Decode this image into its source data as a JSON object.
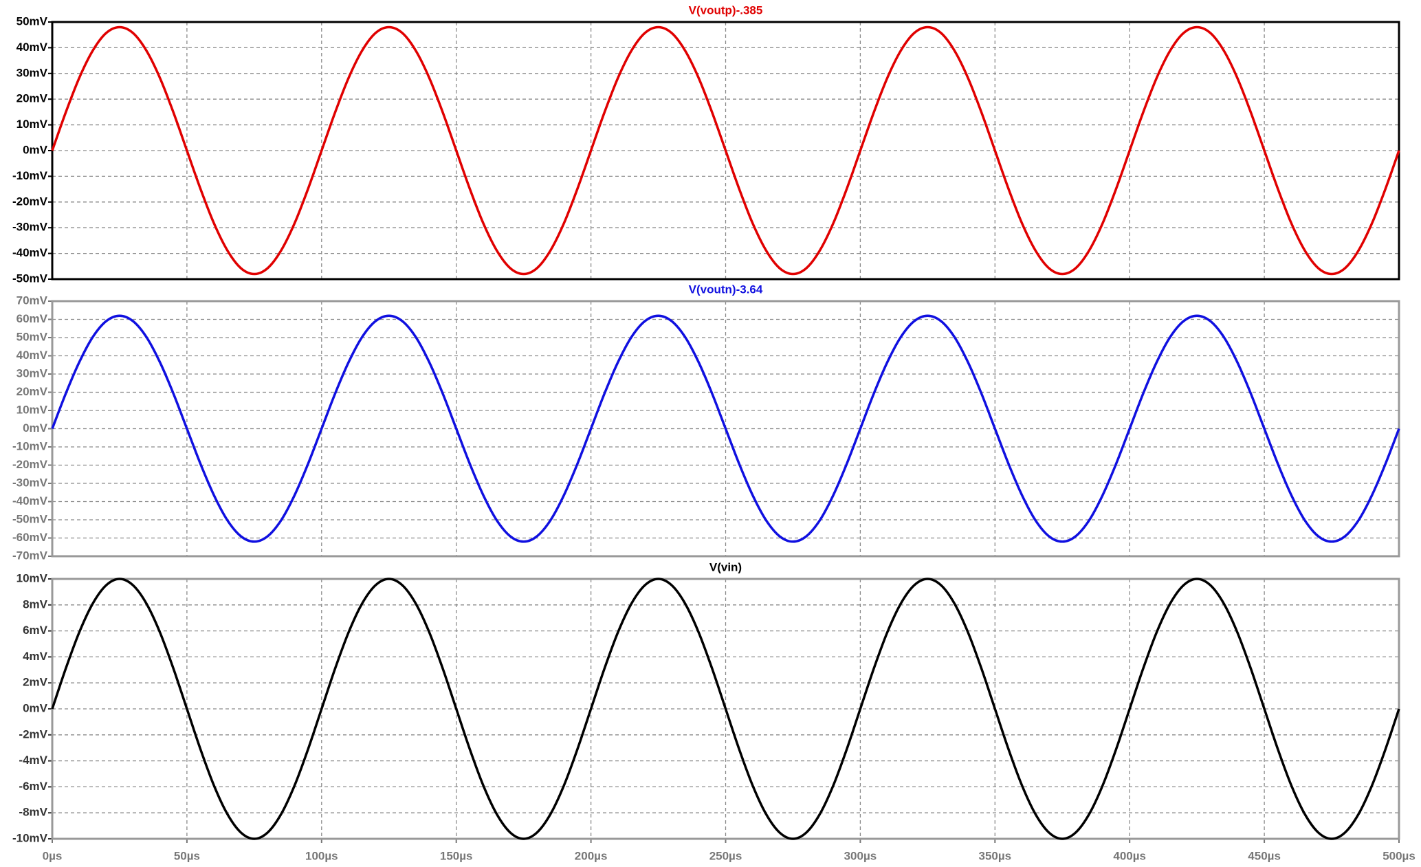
{
  "chart_data": [
    {
      "type": "line",
      "xlim": [
        0,
        500
      ],
      "ylim": [
        -50,
        50
      ],
      "yticks": [
        {
          "value": 50,
          "label": "50mV"
        },
        {
          "value": 40,
          "label": "40mV"
        },
        {
          "value": 30,
          "label": "30mV"
        },
        {
          "value": 20,
          "label": "20mV"
        },
        {
          "value": 10,
          "label": "10mV"
        },
        {
          "value": 0,
          "label": "0mV"
        },
        {
          "value": -10,
          "label": "-10mV"
        },
        {
          "value": -20,
          "label": "-20mV"
        },
        {
          "value": -30,
          "label": "-30mV"
        },
        {
          "value": -40,
          "label": "-40mV"
        },
        {
          "value": -50,
          "label": "-50mV"
        }
      ],
      "grid": true,
      "x": [
        0,
        5,
        10,
        15,
        20,
        25,
        30,
        35,
        40,
        45,
        50,
        55,
        60,
        65,
        70,
        75,
        80,
        85,
        90,
        95,
        100,
        105,
        110,
        115,
        120,
        125,
        130,
        135,
        140,
        145,
        150,
        155,
        160,
        165,
        170,
        175,
        180,
        185,
        190,
        195,
        200,
        205,
        210,
        215,
        220,
        225,
        230,
        235,
        240,
        245,
        250,
        255,
        260,
        265,
        270,
        275,
        280,
        285,
        290,
        295,
        300,
        305,
        310,
        315,
        320,
        325,
        330,
        335,
        340,
        345,
        350,
        355,
        360,
        365,
        370,
        375,
        380,
        385,
        390,
        395,
        400,
        405,
        410,
        415,
        420,
        425,
        430,
        435,
        440,
        445,
        450,
        455,
        460,
        465,
        470,
        475,
        480,
        485,
        490,
        495,
        500
      ],
      "series": [
        {
          "name": "V(voutp)-.385",
          "color": "#e00000",
          "values": [
            0,
            14.8,
            28.2,
            38.8,
            45.7,
            48,
            45.7,
            38.8,
            28.2,
            14.8,
            0,
            -14.8,
            -28.2,
            -38.8,
            -45.7,
            -48,
            -45.7,
            -38.8,
            -28.2,
            -14.8,
            0,
            14.8,
            28.2,
            38.8,
            45.7,
            48,
            45.7,
            38.8,
            28.2,
            14.8,
            0,
            -14.8,
            -28.2,
            -38.8,
            -45.7,
            -48,
            -45.7,
            -38.8,
            -28.2,
            -14.8,
            0,
            14.8,
            28.2,
            38.8,
            45.7,
            48,
            45.7,
            38.8,
            28.2,
            14.8,
            0,
            -14.8,
            -28.2,
            -38.8,
            -45.7,
            -48,
            -45.7,
            -38.8,
            -28.2,
            -14.8,
            0,
            14.8,
            28.2,
            38.8,
            45.7,
            48,
            45.7,
            38.8,
            28.2,
            14.8,
            0,
            -14.8,
            -28.2,
            -38.8,
            -45.7,
            -48,
            -45.7,
            -38.8,
            -28.2,
            -14.8,
            0,
            14.8,
            28.2,
            38.8,
            45.7,
            48,
            45.7,
            38.8,
            28.2,
            14.8,
            0,
            -14.8,
            -28.2,
            -38.8,
            -45.7,
            -48,
            -45.7,
            -38.8,
            -28.2,
            -14.8,
            0
          ]
        }
      ]
    },
    {
      "type": "line",
      "xlim": [
        0,
        500
      ],
      "ylim": [
        -70,
        70
      ],
      "yticks": [
        {
          "value": 70,
          "label": "70mV"
        },
        {
          "value": 60,
          "label": "60mV"
        },
        {
          "value": 50,
          "label": "50mV"
        },
        {
          "value": 40,
          "label": "40mV"
        },
        {
          "value": 30,
          "label": "30mV"
        },
        {
          "value": 20,
          "label": "20mV"
        },
        {
          "value": 10,
          "label": "10mV"
        },
        {
          "value": 0,
          "label": "0mV"
        },
        {
          "value": -10,
          "label": "-10mV"
        },
        {
          "value": -20,
          "label": "-20mV"
        },
        {
          "value": -30,
          "label": "-30mV"
        },
        {
          "value": -40,
          "label": "-40mV"
        },
        {
          "value": -50,
          "label": "-50mV"
        },
        {
          "value": -60,
          "label": "-60mV"
        },
        {
          "value": -70,
          "label": "-70mV"
        }
      ],
      "grid": true,
      "x": [
        0,
        5,
        10,
        15,
        20,
        25,
        30,
        35,
        40,
        45,
        50,
        55,
        60,
        65,
        70,
        75,
        80,
        85,
        90,
        95,
        100,
        105,
        110,
        115,
        120,
        125,
        130,
        135,
        140,
        145,
        150,
        155,
        160,
        165,
        170,
        175,
        180,
        185,
        190,
        195,
        200,
        205,
        210,
        215,
        220,
        225,
        230,
        235,
        240,
        245,
        250,
        255,
        260,
        265,
        270,
        275,
        280,
        285,
        290,
        295,
        300,
        305,
        310,
        315,
        320,
        325,
        330,
        335,
        340,
        345,
        350,
        355,
        360,
        365,
        370,
        375,
        380,
        385,
        390,
        395,
        400,
        405,
        410,
        415,
        420,
        425,
        430,
        435,
        440,
        445,
        450,
        455,
        460,
        465,
        470,
        475,
        480,
        485,
        490,
        495,
        500
      ],
      "series": [
        {
          "name": "V(voutn)-3.64",
          "color": "#1010e0",
          "values": [
            0,
            19.2,
            36.4,
            50.2,
            59,
            62,
            59,
            50.2,
            36.4,
            19.2,
            0,
            -19.2,
            -36.4,
            -50.2,
            -59,
            -62,
            -59,
            -50.2,
            -36.4,
            -19.2,
            0,
            19.2,
            36.4,
            50.2,
            59,
            62,
            59,
            50.2,
            36.4,
            19.2,
            0,
            -19.2,
            -36.4,
            -50.2,
            -59,
            -62,
            -59,
            -50.2,
            -36.4,
            -19.2,
            0,
            19.2,
            36.4,
            50.2,
            59,
            62,
            59,
            50.2,
            36.4,
            19.2,
            0,
            -19.2,
            -36.4,
            -50.2,
            -59,
            -62,
            -59,
            -50.2,
            -36.4,
            -19.2,
            0,
            19.2,
            36.4,
            50.2,
            59,
            62,
            59,
            50.2,
            36.4,
            19.2,
            0,
            -19.2,
            -36.4,
            -50.2,
            -59,
            -62,
            -59,
            -50.2,
            -36.4,
            -19.2,
            0,
            19.2,
            36.4,
            50.2,
            59,
            62,
            59,
            50.2,
            36.4,
            19.2,
            0,
            -19.2,
            -36.4,
            -50.2,
            -59,
            -62,
            -59,
            -50.2,
            -36.4,
            -19.2,
            0
          ]
        }
      ]
    },
    {
      "type": "line",
      "xlim": [
        0,
        500
      ],
      "ylim": [
        -10,
        10
      ],
      "xticks": [
        {
          "value": 0,
          "label": "0µs"
        },
        {
          "value": 50,
          "label": "50µs"
        },
        {
          "value": 100,
          "label": "100µs"
        },
        {
          "value": 150,
          "label": "150µs"
        },
        {
          "value": 200,
          "label": "200µs"
        },
        {
          "value": 250,
          "label": "250µs"
        },
        {
          "value": 300,
          "label": "300µs"
        },
        {
          "value": 350,
          "label": "350µs"
        },
        {
          "value": 400,
          "label": "400µs"
        },
        {
          "value": 450,
          "label": "450µs"
        },
        {
          "value": 500,
          "label": "500µs"
        }
      ],
      "yticks": [
        {
          "value": 10,
          "label": "10mV"
        },
        {
          "value": 8,
          "label": "8mV"
        },
        {
          "value": 6,
          "label": "6mV"
        },
        {
          "value": 4,
          "label": "4mV"
        },
        {
          "value": 2,
          "label": "2mV"
        },
        {
          "value": 0,
          "label": "0mV"
        },
        {
          "value": -2,
          "label": "-2mV"
        },
        {
          "value": -4,
          "label": "-4mV"
        },
        {
          "value": -6,
          "label": "-6mV"
        },
        {
          "value": -8,
          "label": "-8mV"
        },
        {
          "value": -10,
          "label": "-10mV"
        }
      ],
      "grid": true,
      "x": [
        0,
        5,
        10,
        15,
        20,
        25,
        30,
        35,
        40,
        45,
        50,
        55,
        60,
        65,
        70,
        75,
        80,
        85,
        90,
        95,
        100,
        105,
        110,
        115,
        120,
        125,
        130,
        135,
        140,
        145,
        150,
        155,
        160,
        165,
        170,
        175,
        180,
        185,
        190,
        195,
        200,
        205,
        210,
        215,
        220,
        225,
        230,
        235,
        240,
        245,
        250,
        255,
        260,
        265,
        270,
        275,
        280,
        285,
        290,
        295,
        300,
        305,
        310,
        315,
        320,
        325,
        330,
        335,
        340,
        345,
        350,
        355,
        360,
        365,
        370,
        375,
        380,
        385,
        390,
        395,
        400,
        405,
        410,
        415,
        420,
        425,
        430,
        435,
        440,
        445,
        450,
        455,
        460,
        465,
        470,
        475,
        480,
        485,
        490,
        495,
        500
      ],
      "series": [
        {
          "name": "V(vin)",
          "color": "#000000",
          "values": [
            0,
            3.09,
            5.88,
            8.09,
            9.51,
            10,
            9.51,
            8.09,
            5.88,
            3.09,
            0,
            -3.09,
            -5.88,
            -8.09,
            -9.51,
            -10,
            -9.51,
            -8.09,
            -5.88,
            -3.09,
            0,
            3.09,
            5.88,
            8.09,
            9.51,
            10,
            9.51,
            8.09,
            5.88,
            3.09,
            0,
            -3.09,
            -5.88,
            -8.09,
            -9.51,
            -10,
            -9.51,
            -8.09,
            -5.88,
            -3.09,
            0,
            3.09,
            5.88,
            8.09,
            9.51,
            10,
            9.51,
            8.09,
            5.88,
            3.09,
            0,
            -3.09,
            -5.88,
            -8.09,
            -9.51,
            -10,
            -9.51,
            -8.09,
            -5.88,
            -3.09,
            0,
            3.09,
            5.88,
            8.09,
            9.51,
            10,
            9.51,
            8.09,
            5.88,
            3.09,
            0,
            -3.09,
            -5.88,
            -8.09,
            -9.51,
            -10,
            -9.51,
            -8.09,
            -5.88,
            -3.09,
            0,
            3.09,
            5.88,
            8.09,
            9.51,
            10,
            9.51,
            8.09,
            5.88,
            3.09,
            0,
            -3.09,
            -5.88,
            -8.09,
            -9.51,
            -10,
            -9.51,
            -8.09,
            -5.88,
            -3.09,
            0
          ]
        }
      ]
    }
  ]
}
